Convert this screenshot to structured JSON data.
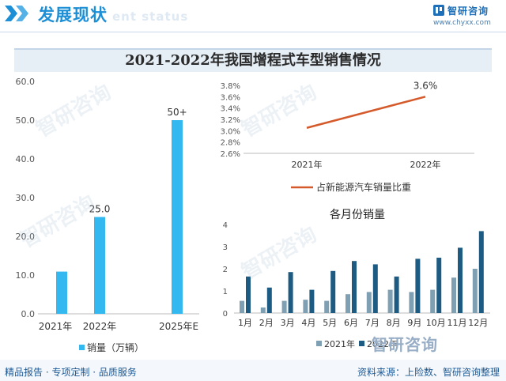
{
  "header": {
    "title": "发展现状",
    "ghost_text": "ent status",
    "brand": "智研咨询",
    "url": "www.chyxx.com"
  },
  "main_title": "2021-2022年我国增程式车型销售情况",
  "footer": {
    "tagline": "精品报告 · 专项定制 · 品质服务",
    "source": "资料来源：上险数、智研咨询整理"
  },
  "watermark": "智研咨询",
  "colors": {
    "accent": "#1c8fd6",
    "bar_blue": "#33b8ef",
    "line_orange": "#d55a2b",
    "bar_2021": "#7f9fb3",
    "bar_2022": "#1e5b82"
  },
  "chart_data": [
    {
      "type": "bar",
      "categories": [
        "2021年",
        "2022年",
        "2025年E"
      ],
      "series": [
        {
          "name": "销量（万辆）",
          "values": [
            10.9,
            25.0,
            50
          ]
        }
      ],
      "data_labels": [
        "",
        "25.0",
        "50+"
      ],
      "yticks": [
        "0.0",
        "10.0",
        "20.0",
        "30.0",
        "40.0",
        "50.0",
        "60.0"
      ],
      "ylim": [
        0,
        60
      ],
      "legend": "bottom"
    },
    {
      "type": "line",
      "x": [
        "2021年",
        "2022年"
      ],
      "series": [
        {
          "name": "占新能源汽车销量比重",
          "values": [
            3.05,
            3.6
          ]
        }
      ],
      "data_labels": [
        "",
        "3.6%"
      ],
      "yticks": [
        "2.6%",
        "2.8%",
        "3.0%",
        "3.2%",
        "3.4%",
        "3.6%",
        "3.8%"
      ],
      "ylim": [
        2.6,
        3.8
      ],
      "legend": "bottom"
    },
    {
      "type": "bar",
      "title": "各月份销量",
      "categories": [
        "1月",
        "2月",
        "3月",
        "4月",
        "5月",
        "6月",
        "7月",
        "8月",
        "9月",
        "10月",
        "11月",
        "12月"
      ],
      "series": [
        {
          "name": "2021年",
          "values": [
            0.55,
            0.25,
            0.55,
            0.6,
            0.55,
            0.85,
            0.95,
            1.05,
            0.95,
            1.05,
            1.6,
            2.0
          ]
        },
        {
          "name": "2022年",
          "values": [
            1.65,
            1.15,
            1.85,
            1.05,
            1.9,
            2.35,
            2.2,
            1.65,
            2.45,
            2.5,
            2.95,
            3.7
          ]
        }
      ],
      "yticks": [
        "0",
        "1",
        "2",
        "3",
        "4"
      ],
      "ylim": [
        0,
        4
      ],
      "legend": "bottom"
    }
  ]
}
